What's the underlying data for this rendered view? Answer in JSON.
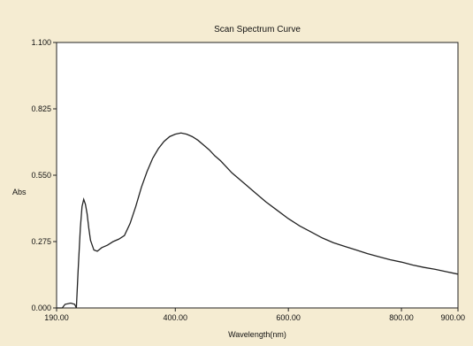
{
  "chart_data": {
    "type": "line",
    "title": "Scan Spectrum Curve",
    "xlabel": "Wavelength(nm)",
    "ylabel": "Abs",
    "xlim": [
      190,
      900
    ],
    "ylim": [
      0,
      1.1
    ],
    "x_ticks": [
      "190.00",
      "400.00",
      "600.00",
      "800.00",
      "900.00"
    ],
    "y_ticks": [
      "0.000",
      "0.275",
      "0.550",
      "0.825",
      "1.100"
    ],
    "grid": false,
    "series": [
      {
        "values_x": [
          190,
          200,
          205,
          215,
          222,
          225,
          228,
          232,
          235,
          238,
          241,
          244,
          247,
          250,
          256,
          262,
          270,
          280,
          290,
          300,
          310,
          320,
          330,
          340,
          350,
          360,
          370,
          380,
          390,
          400,
          410,
          420,
          430,
          440,
          450,
          460,
          470,
          480,
          490,
          500,
          520,
          540,
          560,
          580,
          600,
          620,
          640,
          660,
          680,
          700,
          720,
          740,
          760,
          780,
          800,
          820,
          840,
          860,
          880,
          900
        ],
        "values_y": [
          0.0,
          0.0,
          0.015,
          0.02,
          0.015,
          0.0,
          0.15,
          0.33,
          0.42,
          0.45,
          0.43,
          0.39,
          0.33,
          0.28,
          0.24,
          0.235,
          0.25,
          0.26,
          0.275,
          0.285,
          0.3,
          0.35,
          0.42,
          0.5,
          0.565,
          0.62,
          0.66,
          0.69,
          0.71,
          0.72,
          0.725,
          0.72,
          0.71,
          0.695,
          0.675,
          0.655,
          0.63,
          0.61,
          0.585,
          0.56,
          0.52,
          0.48,
          0.44,
          0.405,
          0.37,
          0.34,
          0.315,
          0.29,
          0.27,
          0.255,
          0.24,
          0.225,
          0.212,
          0.2,
          0.19,
          0.178,
          0.168,
          0.16,
          0.15,
          0.14
        ],
        "color": "#222222"
      }
    ]
  }
}
